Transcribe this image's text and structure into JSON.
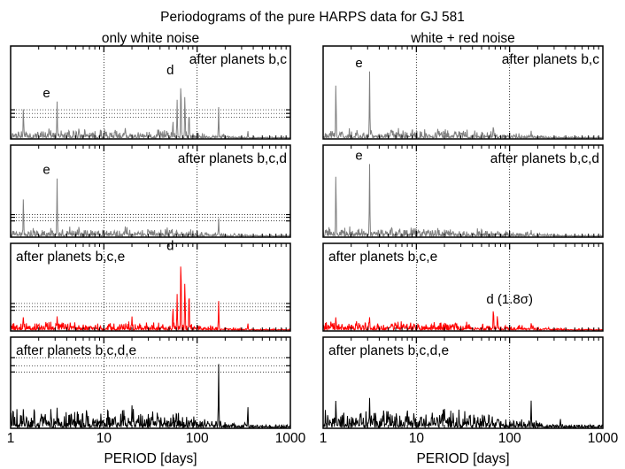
{
  "title": "Periodograms of the pure HARPS data for GJ 581",
  "columns": [
    {
      "heading": "only white noise"
    },
    {
      "heading": "white + red noise"
    }
  ],
  "xlabel": "PERIOD [days]",
  "xticks": [
    "1",
    "10",
    "100",
    "1000"
  ],
  "colors": {
    "gray": "#7f7f7f",
    "red": "#ff0000",
    "black": "#000000"
  },
  "chart_data": {
    "type": "line",
    "x_scale": "log",
    "xlim": [
      1,
      1000
    ],
    "xlabel": "PERIOD [days]",
    "xticks": [
      1,
      10,
      100,
      1000
    ],
    "panels": [
      {
        "row": 0,
        "col": 0,
        "label": "after planets b,c",
        "color": "gray",
        "peaks": [
          {
            "period": 1.37,
            "power": 0.34,
            "label": ""
          },
          {
            "period": 3.15,
            "power": 0.4,
            "label": "e"
          },
          {
            "period": 5.4,
            "power": 0.12,
            "label": ""
          },
          {
            "period": 17,
            "power": 0.12,
            "label": ""
          },
          {
            "period": 55,
            "power": 0.2,
            "label": ""
          },
          {
            "period": 61,
            "power": 0.42,
            "label": ""
          },
          {
            "period": 67,
            "power": 0.65,
            "label": "d"
          },
          {
            "period": 74,
            "power": 0.5,
            "label": ""
          },
          {
            "period": 82,
            "power": 0.3,
            "label": ""
          },
          {
            "period": 170,
            "power": 0.34,
            "label": ""
          },
          {
            "period": 350,
            "power": 0.08,
            "label": ""
          }
        ],
        "sig_levels": [
          0.23,
          0.27,
          0.31
        ]
      },
      {
        "row": 0,
        "col": 1,
        "label": "after planets b,c",
        "color": "gray",
        "peaks": [
          {
            "period": 1.37,
            "power": 0.62,
            "label": ""
          },
          {
            "period": 3.15,
            "power": 0.73,
            "label": "e"
          },
          {
            "period": 5.4,
            "power": 0.1,
            "label": ""
          },
          {
            "period": 17,
            "power": 0.11,
            "label": ""
          },
          {
            "period": 67,
            "power": 0.14,
            "label": ""
          },
          {
            "period": 170,
            "power": 0.08,
            "label": ""
          }
        ],
        "sig_levels": []
      },
      {
        "row": 1,
        "col": 0,
        "label": "after planets b,c,d",
        "color": "gray",
        "peaks": [
          {
            "period": 1.37,
            "power": 0.44,
            "label": ""
          },
          {
            "period": 3.15,
            "power": 0.64,
            "label": "e"
          },
          {
            "period": 5.4,
            "power": 0.12,
            "label": ""
          },
          {
            "period": 17,
            "power": 0.12,
            "label": ""
          },
          {
            "period": 170,
            "power": 0.2,
            "label": ""
          }
        ],
        "sig_levels": [
          0.17,
          0.21,
          0.24
        ]
      },
      {
        "row": 1,
        "col": 1,
        "label": "after planets b,c,d",
        "color": "gray",
        "peaks": [
          {
            "period": 1.37,
            "power": 0.71,
            "label": ""
          },
          {
            "period": 3.15,
            "power": 0.8,
            "label": "e"
          },
          {
            "period": 5.4,
            "power": 0.1,
            "label": ""
          },
          {
            "period": 17,
            "power": 0.1,
            "label": ""
          },
          {
            "period": 170,
            "power": 0.07,
            "label": ""
          }
        ],
        "sig_levels": []
      },
      {
        "row": 2,
        "col": 0,
        "label": "after planets b,c,e",
        "color": "red",
        "peaks": [
          {
            "period": 1.37,
            "power": 0.16,
            "label": ""
          },
          {
            "period": 3.15,
            "power": 0.16,
            "label": ""
          },
          {
            "period": 20,
            "power": 0.16,
            "label": ""
          },
          {
            "period": 55,
            "power": 0.28,
            "label": ""
          },
          {
            "period": 61,
            "power": 0.42,
            "label": ""
          },
          {
            "period": 67,
            "power": 0.88,
            "label": "d"
          },
          {
            "period": 74,
            "power": 0.6,
            "label": ""
          },
          {
            "period": 82,
            "power": 0.48,
            "label": ""
          },
          {
            "period": 170,
            "power": 0.34,
            "label": ""
          },
          {
            "period": 350,
            "power": 0.08,
            "label": ""
          }
        ],
        "sig_levels": [
          0.23,
          0.27,
          0.31
        ]
      },
      {
        "row": 2,
        "col": 1,
        "label": "after planets b,c,e",
        "color": "red",
        "peaks": [
          {
            "period": 1.37,
            "power": 0.16,
            "label": ""
          },
          {
            "period": 3.15,
            "power": 0.15,
            "label": ""
          },
          {
            "period": 67,
            "power": 0.26,
            "label": "d (1.8σ)"
          },
          {
            "period": 74,
            "power": 0.18,
            "label": ""
          },
          {
            "period": 170,
            "power": 0.08,
            "label": ""
          }
        ],
        "sig_levels": []
      },
      {
        "row": 3,
        "col": 0,
        "label": "after planets b,c,d,e",
        "color": "black",
        "peaks": [
          {
            "period": 1.37,
            "power": 0.22,
            "label": ""
          },
          {
            "period": 3.15,
            "power": 0.22,
            "label": ""
          },
          {
            "period": 20,
            "power": 0.25,
            "label": ""
          },
          {
            "period": 60,
            "power": 0.2,
            "label": ""
          },
          {
            "period": 170,
            "power": 0.71,
            "label": ""
          },
          {
            "period": 350,
            "power": 0.24,
            "label": ""
          }
        ],
        "sig_levels": [
          0.62,
          0.69,
          0.78
        ]
      },
      {
        "row": 3,
        "col": 1,
        "label": "after planets b,c,d,e",
        "color": "black",
        "peaks": [
          {
            "period": 1.37,
            "power": 0.32,
            "label": ""
          },
          {
            "period": 3.15,
            "power": 0.33,
            "label": ""
          },
          {
            "period": 20,
            "power": 0.21,
            "label": ""
          },
          {
            "period": 60,
            "power": 0.18,
            "label": ""
          },
          {
            "period": 170,
            "power": 0.3,
            "label": ""
          },
          {
            "period": 350,
            "power": 0.1,
            "label": ""
          }
        ],
        "sig_levels": []
      }
    ]
  }
}
